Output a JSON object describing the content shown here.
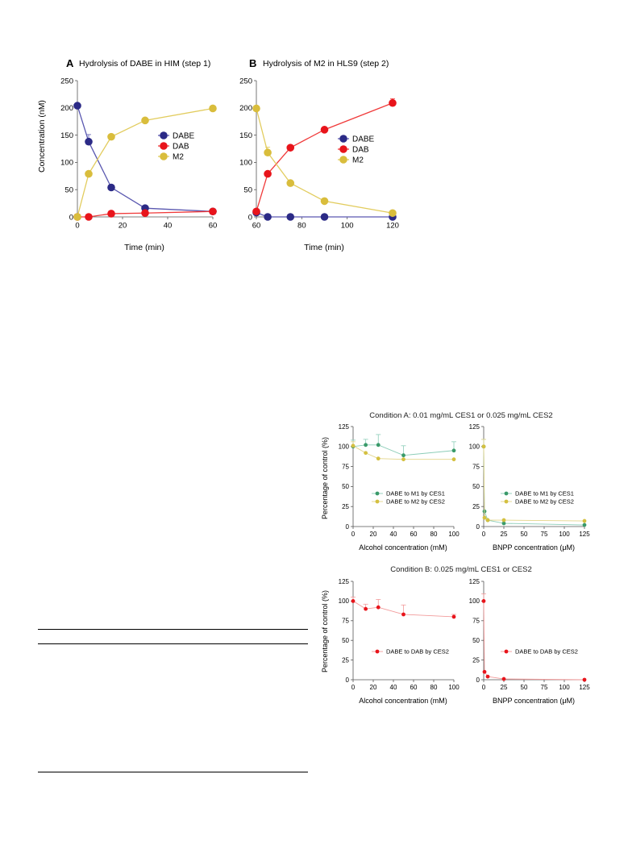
{
  "colors": {
    "dabe": "#2b2a86",
    "dab": "#e8141b",
    "m2": "#d9bd3c",
    "line_dabe": "#5a58b0",
    "line_dab": "#f03a3a",
    "line_m2": "#e2cc5e",
    "ces1_green": "#3a9a6a",
    "ces1_line": "#8ccdb8",
    "ces2_yellow": "#d4c040",
    "ces2_line": "#e3d58a",
    "dab_panel": "#e8141b",
    "dab_panel_line": "#f29b9b",
    "axis": "#555555"
  },
  "condition_a_title": "Condition A: 0.01 mg/mL CES1 or 0.025 mg/mL CES2",
  "condition_b_title": "Condition B: 0.025 mg/mL CES1 or CES2",
  "chart_data": [
    {
      "id": "A",
      "type": "line",
      "panel_letter": "A",
      "title": "Hydrolysis of DABE in HIM (step 1)",
      "xlabel": "Time (min)",
      "ylabel": "Concentration (nM)",
      "xlim": [
        0,
        60
      ],
      "ylim": [
        0,
        250
      ],
      "xticks": [
        0,
        20,
        40,
        60
      ],
      "yticks": [
        0,
        50,
        100,
        150,
        200,
        250
      ],
      "legend_position": "center-right",
      "series": [
        {
          "name": "DABE",
          "x": [
            0,
            5,
            15,
            30,
            60
          ],
          "y": [
            204,
            138,
            54,
            16,
            10
          ],
          "err": [
            0,
            13,
            0,
            0,
            0
          ]
        },
        {
          "name": "DAB",
          "x": [
            0,
            5,
            15,
            30,
            60
          ],
          "y": [
            0,
            0,
            6,
            7,
            10
          ],
          "err": [
            0,
            0,
            0,
            0,
            0
          ]
        },
        {
          "name": "M2",
          "x": [
            0,
            5,
            15,
            30,
            60
          ],
          "y": [
            0,
            79,
            147,
            177,
            199
          ],
          "err": [
            0,
            0,
            0,
            0,
            0
          ]
        }
      ]
    },
    {
      "id": "B",
      "type": "line",
      "panel_letter": "B",
      "title": "Hydrolysis of M2 in HLS9 (step 2)",
      "xlabel": "Time (min)",
      "ylabel": "",
      "xlim": [
        60,
        120
      ],
      "ylim": [
        0,
        250
      ],
      "xticks": [
        60,
        80,
        100,
        120
      ],
      "yticks": [
        0,
        50,
        100,
        150,
        200,
        250
      ],
      "legend_position": "center-right",
      "series": [
        {
          "name": "DABE",
          "x": [
            60,
            65,
            75,
            90,
            120
          ],
          "y": [
            8,
            0,
            0,
            0,
            0
          ],
          "err": [
            0,
            0,
            0,
            0,
            0
          ]
        },
        {
          "name": "DAB",
          "x": [
            60,
            65,
            75,
            90,
            120
          ],
          "y": [
            10,
            79,
            127,
            160,
            209
          ],
          "err": [
            0,
            0,
            0,
            0,
            8
          ]
        },
        {
          "name": "M2",
          "x": [
            60,
            65,
            75,
            90,
            120
          ],
          "y": [
            199,
            118,
            62,
            29,
            7
          ],
          "err": [
            0,
            10,
            0,
            0,
            0
          ]
        }
      ]
    },
    {
      "id": "CA1",
      "type": "line",
      "title": "",
      "xlabel": "Alcohol concentration (mM)",
      "ylabel": "Percentage of control (%)",
      "xlim": [
        0,
        100
      ],
      "ylim": [
        0,
        125
      ],
      "xticks": [
        0,
        20,
        40,
        60,
        80,
        100
      ],
      "yticks": [
        0,
        25,
        50,
        75,
        100,
        125
      ],
      "legend_position": "bottom-right",
      "series": [
        {
          "name": "DABE to M1 by CES1",
          "x": [
            0,
            12.5,
            25,
            50,
            100
          ],
          "y": [
            100,
            102,
            102,
            89,
            95
          ],
          "err": [
            8,
            7,
            13,
            12,
            11
          ]
        },
        {
          "name": "DABE to M2 by CES2",
          "x": [
            0,
            12.5,
            25,
            50,
            100
          ],
          "y": [
            101,
            92,
            85,
            84,
            84
          ],
          "err": [
            5,
            0,
            0,
            0,
            0
          ]
        }
      ]
    },
    {
      "id": "CA2",
      "type": "line",
      "title": "",
      "xlabel": "BNPP concentration (μM)",
      "ylabel": "",
      "xlim": [
        0,
        125
      ],
      "ylim": [
        0,
        125
      ],
      "xticks": [
        0,
        25,
        50,
        75,
        100,
        125
      ],
      "yticks": [
        0,
        25,
        50,
        75,
        100,
        125
      ],
      "legend_position": "bottom-right",
      "series": [
        {
          "name": "DABE to M1 by CES1",
          "x": [
            0,
            1,
            5,
            25,
            125
          ],
          "y": [
            100,
            19,
            8,
            4,
            2
          ],
          "err": [
            9,
            0,
            0,
            0,
            0
          ]
        },
        {
          "name": "DABE to M2 by CES2",
          "x": [
            0,
            1,
            5,
            25,
            125
          ],
          "y": [
            100,
            11,
            8,
            8,
            7
          ],
          "err": [
            9,
            0,
            0,
            0,
            0
          ]
        }
      ]
    },
    {
      "id": "CB1",
      "type": "line",
      "title": "",
      "xlabel": "Alcohol concentration (mM)",
      "ylabel": "Percentage of control (%)",
      "xlim": [
        0,
        100
      ],
      "ylim": [
        0,
        125
      ],
      "xticks": [
        0,
        20,
        40,
        60,
        80,
        100
      ],
      "yticks": [
        0,
        25,
        50,
        75,
        100,
        125
      ],
      "legend_position": "bottom-right",
      "series": [
        {
          "name": "DABE to DAB by CES2",
          "x": [
            0,
            12.5,
            25,
            50,
            100
          ],
          "y": [
            100,
            90,
            92,
            83,
            80
          ],
          "err": [
            5,
            6,
            10,
            12,
            3
          ]
        }
      ]
    },
    {
      "id": "CB2",
      "type": "line",
      "title": "",
      "xlabel": "BNPP concentration (μM)",
      "ylabel": "",
      "xlim": [
        0,
        125
      ],
      "ylim": [
        0,
        125
      ],
      "xticks": [
        0,
        25,
        50,
        75,
        100,
        125
      ],
      "yticks": [
        0,
        25,
        50,
        75,
        100,
        125
      ],
      "legend_position": "bottom-right",
      "series": [
        {
          "name": "DABE to DAB by CES2",
          "x": [
            0,
            1,
            5,
            25,
            125
          ],
          "y": [
            100,
            10,
            4,
            1,
            0
          ],
          "err": [
            9,
            0,
            0,
            0,
            0
          ]
        }
      ]
    }
  ]
}
